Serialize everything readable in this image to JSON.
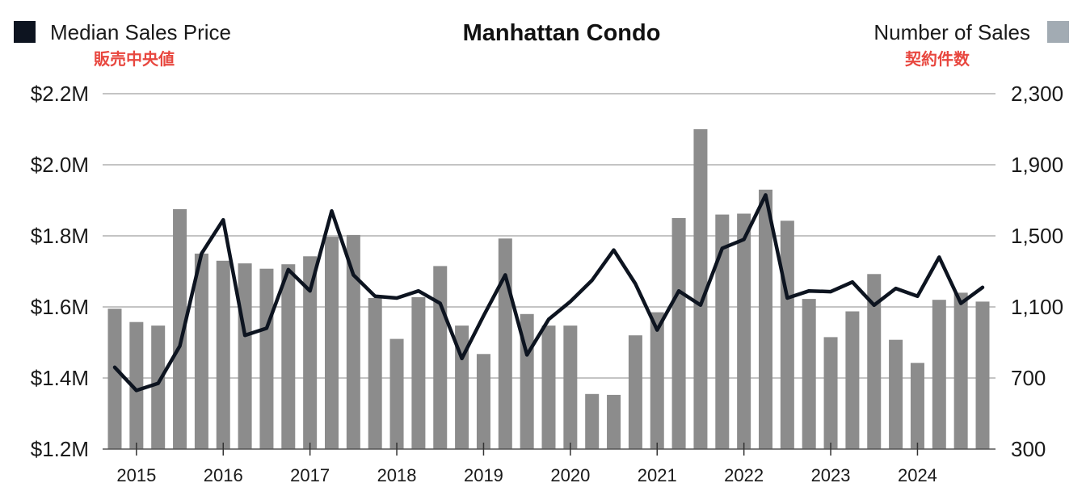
{
  "title": "Manhattan Condo",
  "legend": {
    "left": {
      "label": "Median Sales Price",
      "label_jp": "販売中央値",
      "color": "#0d1420"
    },
    "right": {
      "label": "Number of Sales",
      "label_jp": "契約件数",
      "color": "#a2abb3"
    }
  },
  "chart_data": {
    "type": "bar+line",
    "title": "Manhattan Condo",
    "x_labels": [
      "2015",
      "2016",
      "2017",
      "2018",
      "2019",
      "2020",
      "2021",
      "2022",
      "2023",
      "2024"
    ],
    "x_start_year": 2015,
    "quarters": [
      "2014 Q4",
      "2015 Q1",
      "2015 Q2",
      "2015 Q3",
      "2015 Q4",
      "2016 Q1",
      "2016 Q2",
      "2016 Q3",
      "2016 Q4",
      "2017 Q1",
      "2017 Q2",
      "2017 Q3",
      "2017 Q4",
      "2018 Q1",
      "2018 Q2",
      "2018 Q3",
      "2018 Q4",
      "2019 Q1",
      "2019 Q2",
      "2019 Q3",
      "2019 Q4",
      "2020 Q1",
      "2020 Q2",
      "2020 Q3",
      "2020 Q4",
      "2021 Q1",
      "2021 Q2",
      "2021 Q3",
      "2021 Q4",
      "2022 Q1",
      "2022 Q2",
      "2022 Q3",
      "2022 Q4",
      "2023 Q1",
      "2023 Q2",
      "2023 Q3",
      "2023 Q4",
      "2024 Q1",
      "2024 Q2",
      "2024 Q3",
      "2024 Q4"
    ],
    "series": [
      {
        "name": "Number of Sales",
        "type": "bar",
        "axis": "right",
        "color": "#8c8c8c",
        "values": [
          1090,
          1015,
          995,
          1650,
          1400,
          1360,
          1345,
          1315,
          1340,
          1385,
          1495,
          1505,
          1150,
          920,
          1155,
          1330,
          995,
          835,
          1485,
          1060,
          995,
          995,
          610,
          605,
          940,
          1070,
          1600,
          2100,
          1620,
          1625,
          1760,
          1585,
          1145,
          930,
          1075,
          1285,
          915,
          785,
          1140,
          1180,
          1130
        ]
      },
      {
        "name": "Median Sales Price",
        "type": "line",
        "axis": "left",
        "color": "#0d1420",
        "values": [
          1.43,
          1.365,
          1.385,
          1.49,
          1.75,
          1.845,
          1.52,
          1.54,
          1.705,
          1.645,
          1.87,
          1.69,
          1.63,
          1.625,
          1.645,
          1.61,
          1.455,
          1.575,
          1.69,
          1.465,
          1.565,
          1.615,
          1.675,
          1.76,
          1.665,
          1.535,
          1.645,
          1.605,
          1.765,
          1.79,
          1.915,
          1.625,
          1.645,
          1.643,
          1.67,
          1.605,
          1.652,
          1.63,
          1.74,
          1.61,
          1.655
        ]
      }
    ],
    "y_left": {
      "ticks": [
        "$2.2M",
        "$2.0M",
        "$1.8M",
        "$1.6M",
        "$1.4M",
        "$1.2M"
      ],
      "min": 1.2,
      "max": 2.2
    },
    "y_right": {
      "ticks": [
        "2,300",
        "1,900",
        "1,500",
        "1,100",
        "700",
        "300"
      ],
      "min": 300,
      "max": 2300
    },
    "grid": true
  }
}
